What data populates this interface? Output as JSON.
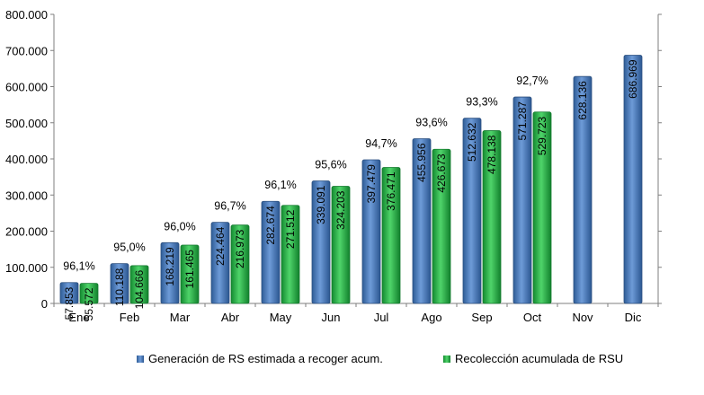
{
  "chart_data": {
    "type": "bar",
    "title": "",
    "xlabel": "",
    "ylabel": "",
    "categories": [
      "Ene",
      "Feb",
      "Mar",
      "Abr",
      "May",
      "Jun",
      "Jul",
      "Ago",
      "Sep",
      "Oct",
      "Nov",
      "Dic"
    ],
    "series": [
      {
        "name": "Generación de RS estimada a recoger acum.",
        "color": "#4F81BD",
        "values": [
          57853,
          110188,
          168219,
          224464,
          282674,
          339091,
          397479,
          455956,
          512632,
          571287,
          628136,
          686969
        ],
        "labels": [
          "57.853",
          "110.188",
          "168.219",
          "224.464",
          "282.674",
          "339.091",
          "397.479",
          "455.956",
          "512.632",
          "571.287",
          "628.136",
          "686.969"
        ]
      },
      {
        "name": "Recolección acumulada de RSU",
        "color": "#2DB34A",
        "values": [
          55572,
          104666,
          161465,
          216973,
          271512,
          324203,
          376471,
          426673,
          478138,
          529723,
          null,
          null
        ],
        "labels": [
          "55.572",
          "104.666",
          "161.465",
          "216.973",
          "271.512",
          "324.203",
          "376.471",
          "426.673",
          "478.138",
          "529.723",
          "",
          ""
        ]
      }
    ],
    "percent_labels": [
      "96,1%",
      "95,0%",
      "96,0%",
      "96,7%",
      "96,1%",
      "95,6%",
      "94,7%",
      "93,6%",
      "93,3%",
      "92,7%",
      "",
      ""
    ],
    "ylim": [
      0,
      800000
    ],
    "yticks": [
      0,
      100000,
      200000,
      300000,
      400000,
      500000,
      600000,
      700000,
      800000
    ],
    "ytick_labels": [
      "0",
      "100.000",
      "200.000",
      "300.000",
      "400.000",
      "500.000",
      "600.000",
      "700.000",
      "800.000"
    ],
    "grid": false,
    "legend_position": "bottom"
  }
}
